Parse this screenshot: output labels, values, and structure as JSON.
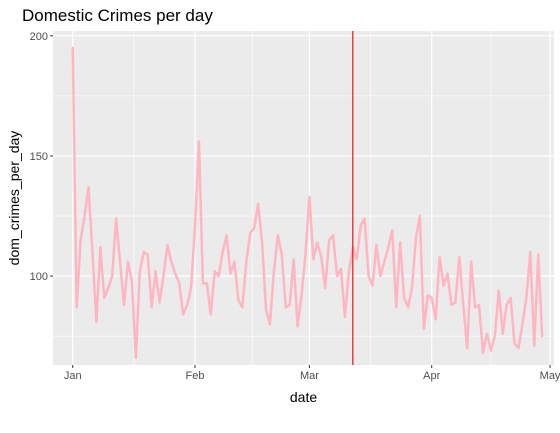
{
  "chart_data": {
    "type": "line",
    "title": "Domestic Crimes per day",
    "xlabel": "date",
    "ylabel": "dom_crimes_per_day",
    "x_start": "2020-01-01",
    "x_ticks": [
      {
        "label": "Jan",
        "date": "2020-01-01"
      },
      {
        "label": "Feb",
        "date": "2020-02-01"
      },
      {
        "label": "Mar",
        "date": "2020-03-01"
      },
      {
        "label": "Apr",
        "date": "2020-04-01"
      },
      {
        "label": "May",
        "date": "2020-05-01"
      }
    ],
    "y_ticks": [
      100,
      150,
      200
    ],
    "xlim": [
      "2019-12-27",
      "2020-05-02"
    ],
    "ylim": [
      63,
      202
    ],
    "grid": true,
    "line_color": "#FFB6C1",
    "vline": {
      "date": "2020-03-12",
      "color": "#E8131B"
    },
    "series": [
      {
        "values": [
          195,
          87,
          115,
          125,
          137,
          110,
          81,
          112,
          91,
          95,
          100,
          124,
          106,
          88,
          106,
          98,
          66,
          102,
          110,
          109,
          87,
          102,
          89,
          100,
          113,
          106,
          101,
          97,
          84,
          88,
          95,
          121,
          156,
          97,
          97,
          84,
          102,
          100,
          110,
          117,
          101,
          106,
          90,
          87,
          106,
          118,
          120,
          130,
          114,
          86,
          80,
          102,
          117,
          109,
          87,
          88,
          107,
          79,
          92,
          109,
          133,
          107,
          114,
          108,
          95,
          115,
          117,
          100,
          103,
          83,
          102,
          112,
          107,
          121,
          124,
          100,
          96,
          113,
          100,
          106,
          112,
          119,
          87,
          114,
          91,
          87,
          95,
          116,
          125,
          78,
          92,
          91,
          82,
          108,
          96,
          101,
          88,
          89,
          108,
          88,
          70,
          106,
          87,
          88,
          68,
          76,
          69,
          75,
          94,
          76,
          88,
          91,
          72,
          70,
          80,
          91,
          110,
          71,
          109,
          75
        ]
      }
    ]
  }
}
